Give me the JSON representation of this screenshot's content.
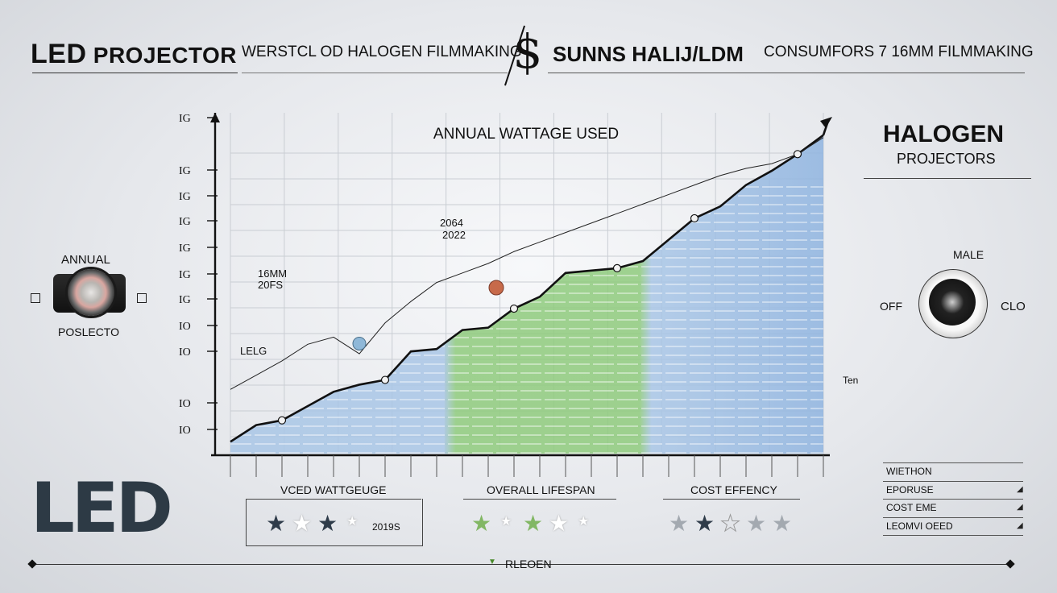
{
  "header": {
    "title_led": "LED",
    "title_projector": "PROJECTOR",
    "title_sub_left": "WERSTCL OD HALOGEN FILMMAKING",
    "amp": "$",
    "title_right_bold": "SUNNS HALIJ/LDM",
    "title_right_sub": "CONSUMFORS 7 16MM FILMMAKING"
  },
  "left_panel": {
    "top_label": "ANNUAL",
    "bottom_label": "POSLECTO"
  },
  "right_panel": {
    "title": "HALOGEN",
    "subtitle": "PROJECTORS",
    "device_label": "MALE",
    "left_label": "OFF",
    "right_label": "CLO",
    "side_note": "Ten"
  },
  "chart_data": {
    "type": "area",
    "title": "ANNUAL WATTAGE USED",
    "y_tick_labels": [
      "IG",
      "IG",
      "IG",
      "IG",
      "IG",
      "IG",
      "IG",
      "IO",
      "IO",
      "IO",
      "IO"
    ],
    "x": [
      0,
      1,
      2,
      3,
      4,
      5,
      6,
      7,
      8,
      9,
      10,
      11,
      12,
      13,
      14,
      15,
      16,
      17,
      18,
      19,
      20,
      21,
      22,
      23
    ],
    "series": [
      {
        "name": "LED",
        "values": [
          0.5,
          1.2,
          1.4,
          2.0,
          2.6,
          2.9,
          3.1,
          4.3,
          4.4,
          5.2,
          5.3,
          6.1,
          6.6,
          7.6,
          7.7,
          7.8,
          8.1,
          9.0,
          9.9,
          10.4,
          11.3,
          11.9,
          12.6,
          13.4
        ]
      },
      {
        "name": "",
        "values": [
          2.7,
          3.3,
          3.9,
          4.6,
          4.9,
          4.2,
          5.5,
          6.4,
          7.2,
          7.6,
          8.0,
          8.5,
          8.9,
          9.3,
          9.7,
          10.1,
          10.5,
          10.9,
          11.3,
          11.7,
          12.0,
          12.2,
          12.6,
          13.3
        ]
      }
    ],
    "annotations": [
      "2064",
      "2022",
      "16MM",
      "20FS",
      "LELG"
    ],
    "ylim": [
      0,
      14
    ],
    "grid": true
  },
  "bottom": {
    "sections": [
      {
        "title": "VCED WATTGEUGE",
        "rating": 3,
        "note": "2019S"
      },
      {
        "title": "OVERALL LIFESPAN",
        "rating": 4
      },
      {
        "title": "COST EFFENCY",
        "rating": 2
      }
    ],
    "legend": [
      "WIETHON",
      "EPORUSE",
      "COST EME",
      "LEOMVI OEED"
    ],
    "footer_label": "RLEOEN",
    "logo": "LED"
  },
  "colors": {
    "area_blue": "#a9c6e6",
    "area_green": "#8fcb7d",
    "line": "#111111",
    "star_dark": "#2f3c4a",
    "star_green": "#82b764"
  }
}
